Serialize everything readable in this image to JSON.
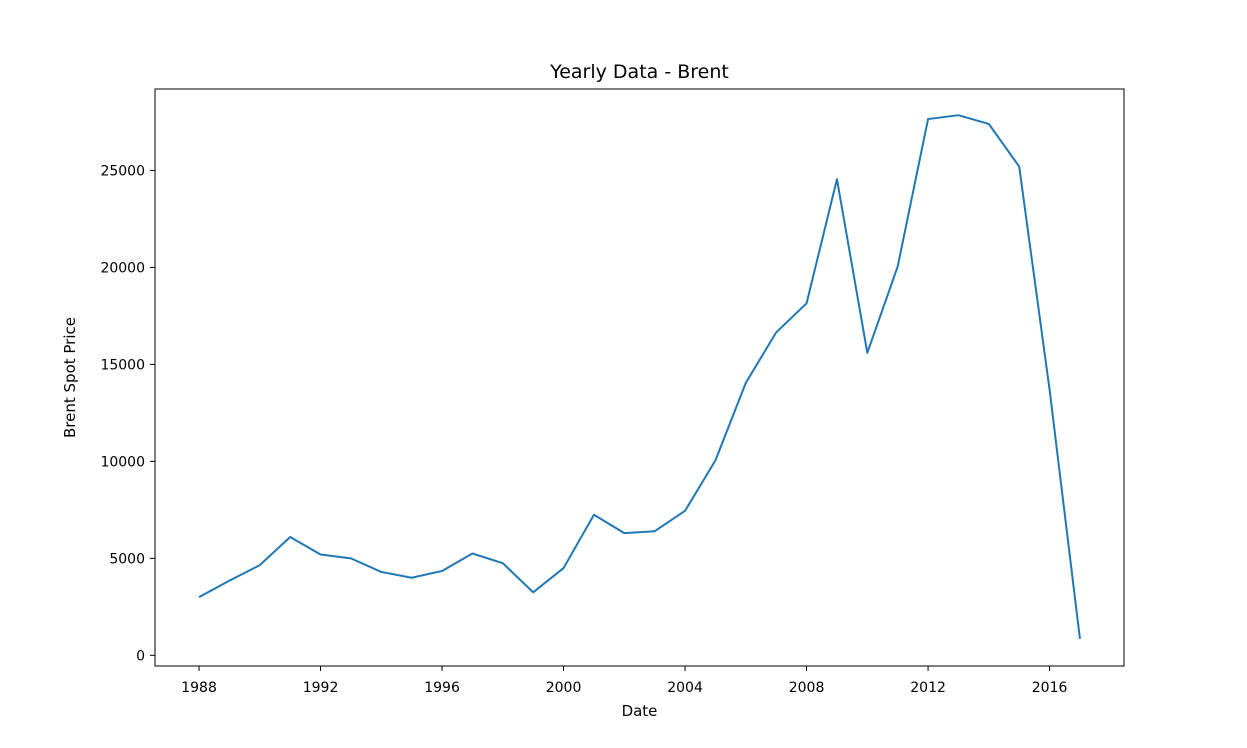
{
  "chart_data": {
    "type": "line",
    "title": "Yearly Data - Brent",
    "xlabel": "Date",
    "ylabel": "Brent Spot Price",
    "x_ticks": [
      1988,
      1992,
      1996,
      2000,
      2004,
      2008,
      2012,
      2016
    ],
    "y_ticks": [
      0,
      5000,
      10000,
      15000,
      20000,
      25000
    ],
    "xlim": [
      1986.55,
      2018.45
    ],
    "ylim": [
      -550,
      29200
    ],
    "grid": false,
    "legend": "none",
    "series": [
      {
        "color": "#1f77b4",
        "x": [
          1988,
          1989,
          1990,
          1991,
          1992,
          1993,
          1994,
          1995,
          1996,
          1997,
          1998,
          1999,
          2000,
          2001,
          2002,
          2003,
          2004,
          2005,
          2006,
          2007,
          2008,
          2009,
          2010,
          2011,
          2012,
          2013,
          2014,
          2015,
          2016,
          2017
        ],
        "values": [
          3000,
          3850,
          4650,
          6100,
          5200,
          5000,
          4300,
          4000,
          4350,
          5250,
          4750,
          3250,
          4500,
          7250,
          6300,
          6400,
          7450,
          10050,
          14050,
          16650,
          18150,
          24550,
          15600,
          20050,
          27650,
          27850,
          27400,
          25200,
          13700,
          850
        ]
      }
    ]
  }
}
